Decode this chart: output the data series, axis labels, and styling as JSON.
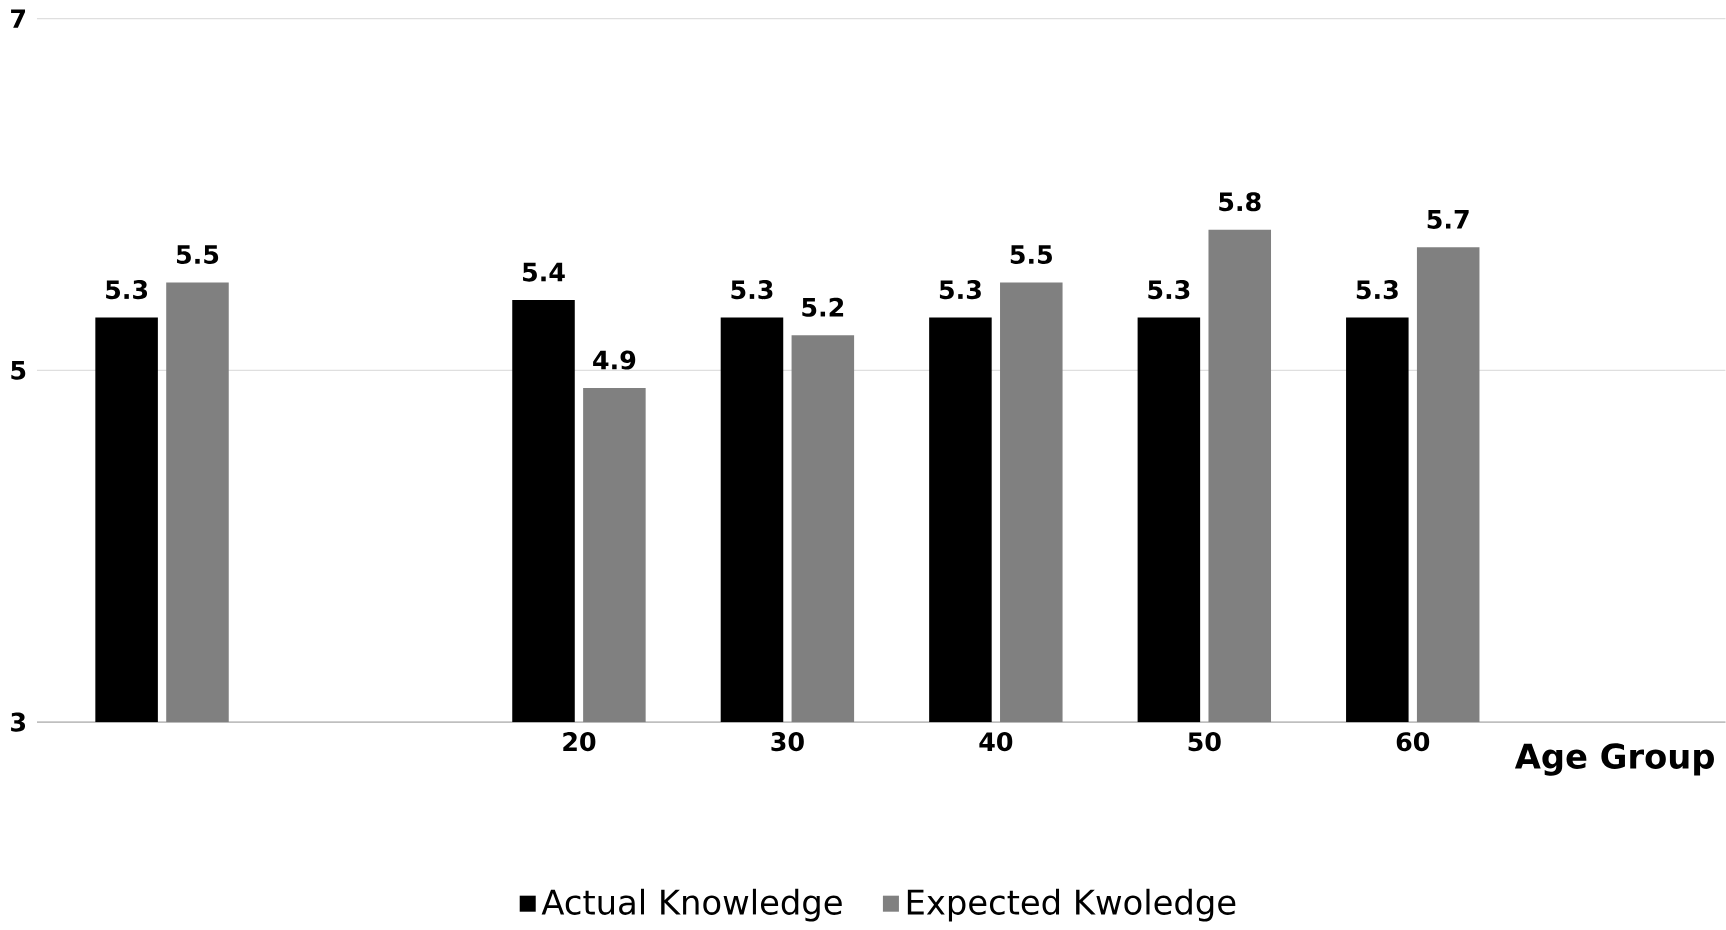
{
  "chart_data": {
    "type": "bar",
    "xlabel": "Age Group",
    "categories": [
      null,
      null,
      "20",
      "30",
      "40",
      "50",
      "60"
    ],
    "series": [
      {
        "name": "Actual Knowledge",
        "color": "#000000",
        "values": [
          5.3,
          null,
          5.4,
          5.3,
          5.3,
          5.3,
          5.3
        ]
      },
      {
        "name": "Expected Kwoledge",
        "color": "#808080",
        "values": [
          5.5,
          null,
          4.9,
          5.2,
          5.5,
          5.8,
          5.7
        ]
      }
    ],
    "ylim": [
      3,
      7
    ],
    "yticks": [
      3,
      5,
      7
    ],
    "grid": "y",
    "legend": "bottom",
    "data_labels": true
  }
}
